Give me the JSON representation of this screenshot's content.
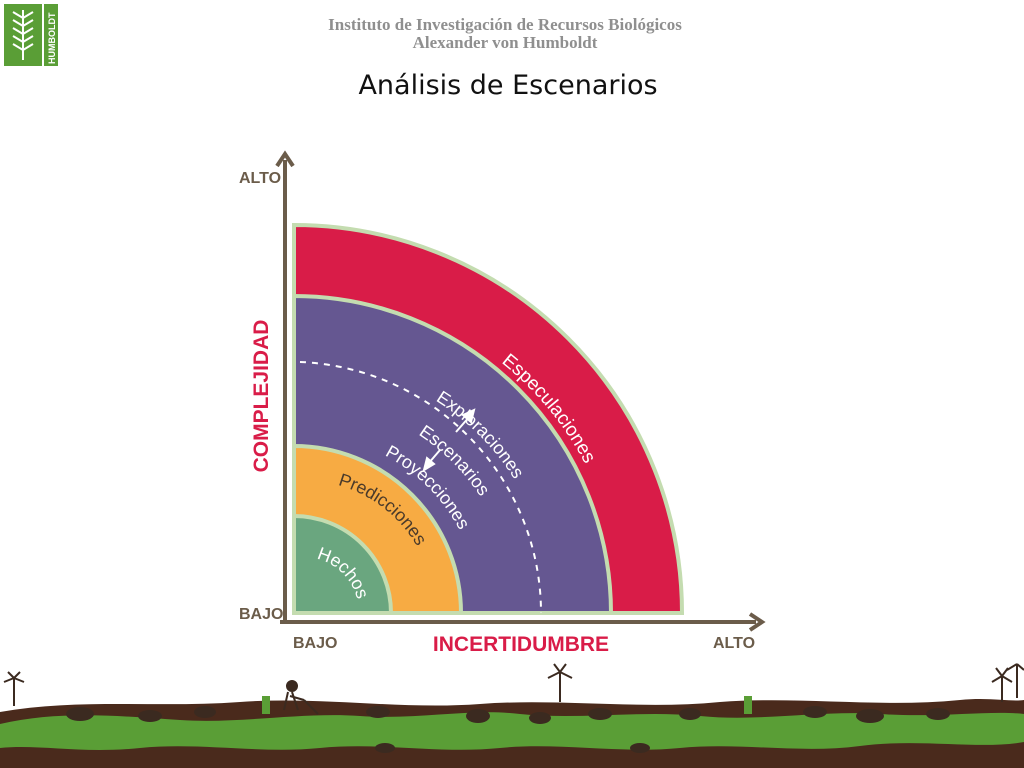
{
  "header": {
    "institution_line1": "Instituto de Investigación de Recursos Biológicos",
    "institution_line2": "Alexander von Humboldt",
    "logo_text": "HUMBOLDT",
    "title": "Análisis de Escenarios"
  },
  "diagram": {
    "y_axis": {
      "label": "COMPLEJIDAD",
      "high": "ALTO",
      "low": "BAJO"
    },
    "x_axis": {
      "label": "INCERTIDUMBRE",
      "low": "BAJO",
      "high": "ALTO"
    },
    "bands": [
      {
        "label": "Hechos",
        "color": "#6aa67f"
      },
      {
        "label": "Predicciones",
        "color": "#f7ab43"
      },
      {
        "label": "Proyecciones",
        "color": "#655791"
      },
      {
        "label": "Escenarios",
        "color": "#655791"
      },
      {
        "label": "Exploraciones",
        "color": "#655791"
      },
      {
        "label": "Especulaciones",
        "color": "#d91c48"
      }
    ],
    "colors": {
      "axis": "#6b5c4a",
      "axis_label": "#d91c48",
      "tick_label": "#6b5c4a",
      "band_outline": "#c4dcb0"
    }
  },
  "footer": {
    "colors": {
      "soil": "#4a2a1c",
      "grass": "#5a9e36",
      "silhouette": "#3b2a20"
    }
  }
}
